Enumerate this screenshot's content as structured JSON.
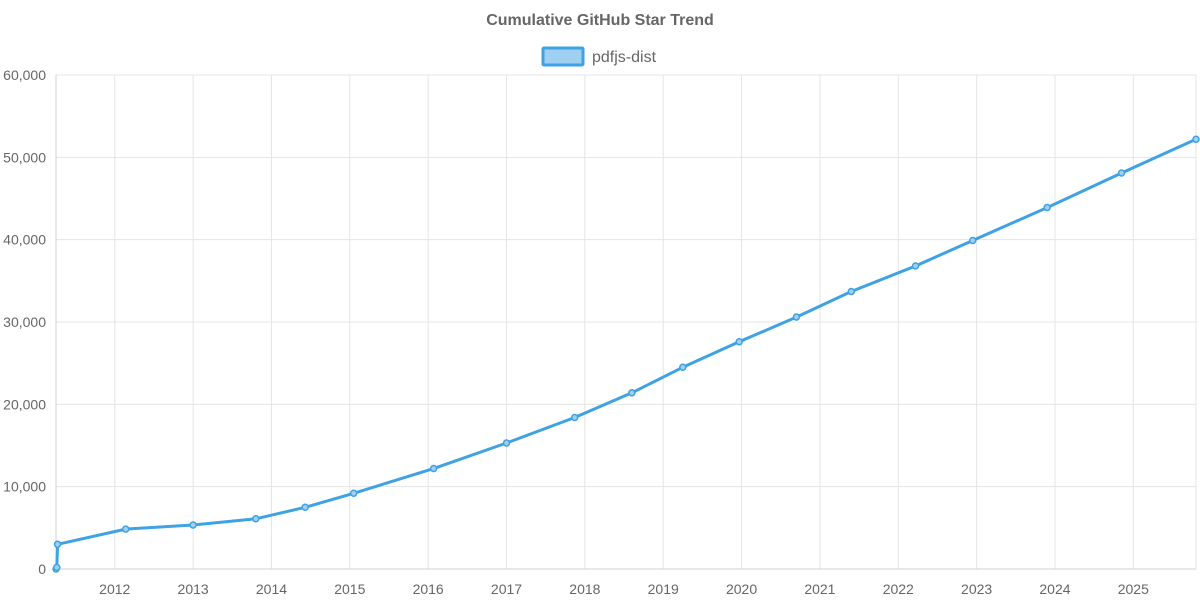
{
  "chart_data": {
    "type": "line",
    "title": "Cumulative GitHub Star Trend",
    "xlabel": "",
    "ylabel": "",
    "legend_position": "top-center",
    "grid": true,
    "xlim": [
      2011.25,
      2025.8
    ],
    "ylim": [
      0,
      60000
    ],
    "x_ticks": [
      "2012",
      "2013",
      "2014",
      "2015",
      "2016",
      "2017",
      "2018",
      "2019",
      "2020",
      "2021",
      "2022",
      "2023",
      "2024",
      "2025"
    ],
    "y_ticks": [
      "0",
      "10,000",
      "20,000",
      "30,000",
      "40,000",
      "50,000",
      "60,000"
    ],
    "series": [
      {
        "name": "pdfjs-dist",
        "color": "#3fa2e3",
        "fill": "#9fd0f1",
        "x": [
          2011.25,
          2011.26,
          2011.27,
          2012.14,
          2013.0,
          2013.8,
          2014.43,
          2015.05,
          2016.07,
          2017.0,
          2017.87,
          2018.6,
          2019.25,
          2019.97,
          2020.7,
          2021.4,
          2022.22,
          2022.95,
          2023.9,
          2024.85,
          2025.8
        ],
        "y": [
          0,
          200,
          3000,
          4850,
          5350,
          6100,
          7500,
          9200,
          12200,
          15300,
          18400,
          21400,
          24500,
          27600,
          30600,
          33700,
          36800,
          39900,
          43900,
          48100,
          52200
        ]
      }
    ]
  }
}
